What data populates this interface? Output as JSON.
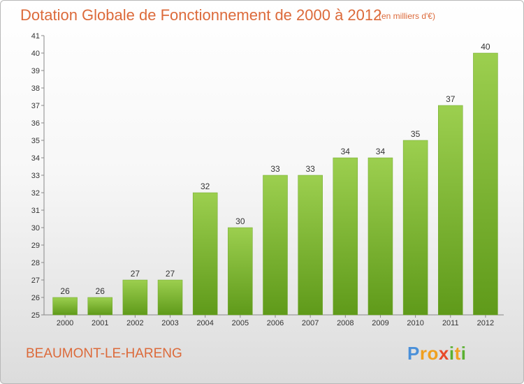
{
  "title": "Dotation Globale de Fonctionnement de 2000 à 2012",
  "subtitle": "(en milliers d'€)",
  "commune": "BEAUMONT-LE-HARENG",
  "logo": {
    "text": "Proxiti",
    "letters": [
      "P",
      "r",
      "o",
      "x",
      "i",
      "t",
      "i"
    ]
  },
  "colors": {
    "title": "#dc6a3a",
    "bar_top": "#9ccf4f",
    "bar_bottom": "#5f9a1a"
  },
  "chart_data": {
    "type": "bar",
    "categories": [
      "2000",
      "2001",
      "2002",
      "2003",
      "2004",
      "2005",
      "2006",
      "2007",
      "2008",
      "2009",
      "2010",
      "2011",
      "2012"
    ],
    "values": [
      26,
      26,
      27,
      27,
      32,
      30,
      33,
      33,
      34,
      34,
      35,
      37,
      40
    ],
    "ylim": [
      25,
      41
    ],
    "yticks": [
      25,
      26,
      27,
      28,
      29,
      30,
      31,
      32,
      33,
      34,
      35,
      36,
      37,
      38,
      39,
      40,
      41
    ],
    "grid": false,
    "legend": "none"
  }
}
